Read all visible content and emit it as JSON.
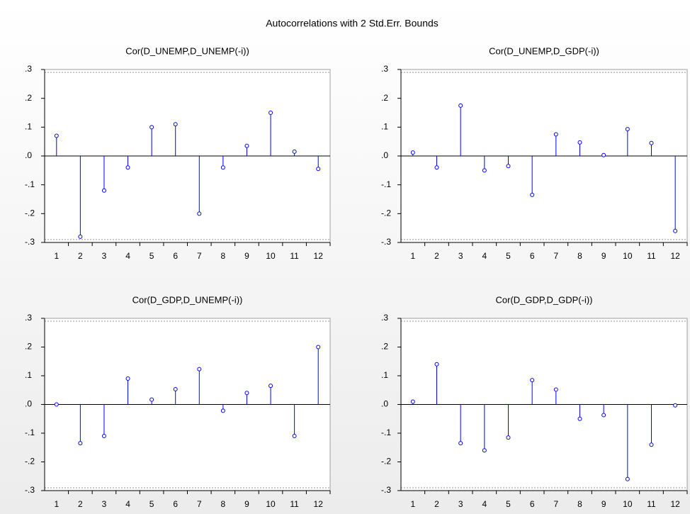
{
  "title": "Autocorrelations with 2 Std.Err. Bounds",
  "chart_data": [
    {
      "type": "stem",
      "title": "Cor(D_UNEMP,D_UNEMP(-i))",
      "color": "#0000ff",
      "categories": [
        "1",
        "2",
        "3",
        "4",
        "5",
        "6",
        "7",
        "8",
        "9",
        "10",
        "11",
        "12"
      ],
      "values": [
        0.07,
        -0.28,
        -0.12,
        -0.04,
        0.1,
        0.11,
        -0.2,
        -0.04,
        0.035,
        0.15,
        0.015,
        -0.045
      ],
      "ylim": [
        -0.3,
        0.3
      ],
      "yticks": [
        {
          "value": -0.3,
          "label": "-.3"
        },
        {
          "value": -0.2,
          "label": "-.2"
        },
        {
          "value": -0.1,
          "label": "-.1"
        },
        {
          "value": 0,
          "label": ".0"
        },
        {
          "value": 0.1,
          "label": ".1"
        },
        {
          "value": 0.2,
          "label": ".2"
        },
        {
          "value": 0.3,
          "label": ".3"
        }
      ],
      "bounds": [
        -0.29,
        0.29
      ]
    },
    {
      "type": "stem",
      "title": "Cor(D_UNEMP,D_GDP(-i))",
      "color": "#0000ff",
      "categories": [
        "1",
        "2",
        "3",
        "4",
        "5",
        "6",
        "7",
        "8",
        "9",
        "10",
        "11",
        "12"
      ],
      "values": [
        0.012,
        -0.04,
        0.175,
        -0.05,
        -0.035,
        -0.135,
        0.075,
        0.047,
        0.003,
        0.093,
        0.045,
        -0.26
      ],
      "ylim": [
        -0.3,
        0.3
      ],
      "yticks": [
        {
          "value": -0.3,
          "label": "-.3"
        },
        {
          "value": -0.2,
          "label": "-.2"
        },
        {
          "value": -0.1,
          "label": "-.1"
        },
        {
          "value": 0,
          "label": ".0"
        },
        {
          "value": 0.1,
          "label": ".1"
        },
        {
          "value": 0.2,
          "label": ".2"
        },
        {
          "value": 0.3,
          "label": ".3"
        }
      ],
      "bounds": [
        -0.29,
        0.29
      ]
    },
    {
      "type": "stem",
      "title": "Cor(D_GDP,D_UNEMP(-i))",
      "color": "#0000ff",
      "categories": [
        "1",
        "2",
        "3",
        "4",
        "5",
        "6",
        "7",
        "8",
        "9",
        "10",
        "11",
        "12"
      ],
      "values": [
        0.0,
        -0.135,
        -0.11,
        0.09,
        0.017,
        0.053,
        0.123,
        -0.022,
        0.04,
        0.065,
        -0.11,
        0.2
      ],
      "ylim": [
        -0.3,
        0.3
      ],
      "yticks": [
        {
          "value": -0.3,
          "label": "-.3"
        },
        {
          "value": -0.2,
          "label": "-.2"
        },
        {
          "value": -0.1,
          "label": "-.1"
        },
        {
          "value": 0,
          "label": ".0"
        },
        {
          "value": 0.1,
          "label": ".1"
        },
        {
          "value": 0.2,
          "label": ".2"
        },
        {
          "value": 0.3,
          "label": ".3"
        }
      ],
      "bounds": [
        -0.29,
        0.29
      ]
    },
    {
      "type": "stem",
      "title": "Cor(D_GDP,D_GDP(-i))",
      "color": "#0000ff",
      "categories": [
        "1",
        "2",
        "3",
        "4",
        "5",
        "6",
        "7",
        "8",
        "9",
        "10",
        "11",
        "12"
      ],
      "values": [
        0.01,
        0.14,
        -0.135,
        -0.16,
        -0.115,
        0.085,
        0.052,
        -0.05,
        -0.037,
        -0.26,
        -0.14,
        -0.003
      ],
      "ylim": [
        -0.3,
        0.3
      ],
      "yticks": [
        {
          "value": -0.3,
          "label": "-.3"
        },
        {
          "value": -0.2,
          "label": "-.2"
        },
        {
          "value": -0.1,
          "label": "-.1"
        },
        {
          "value": 0,
          "label": ".0"
        },
        {
          "value": 0.1,
          "label": ".1"
        },
        {
          "value": 0.2,
          "label": ".2"
        },
        {
          "value": 0.3,
          "label": ".3"
        }
      ],
      "bounds": [
        -0.29,
        0.29
      ]
    }
  ]
}
